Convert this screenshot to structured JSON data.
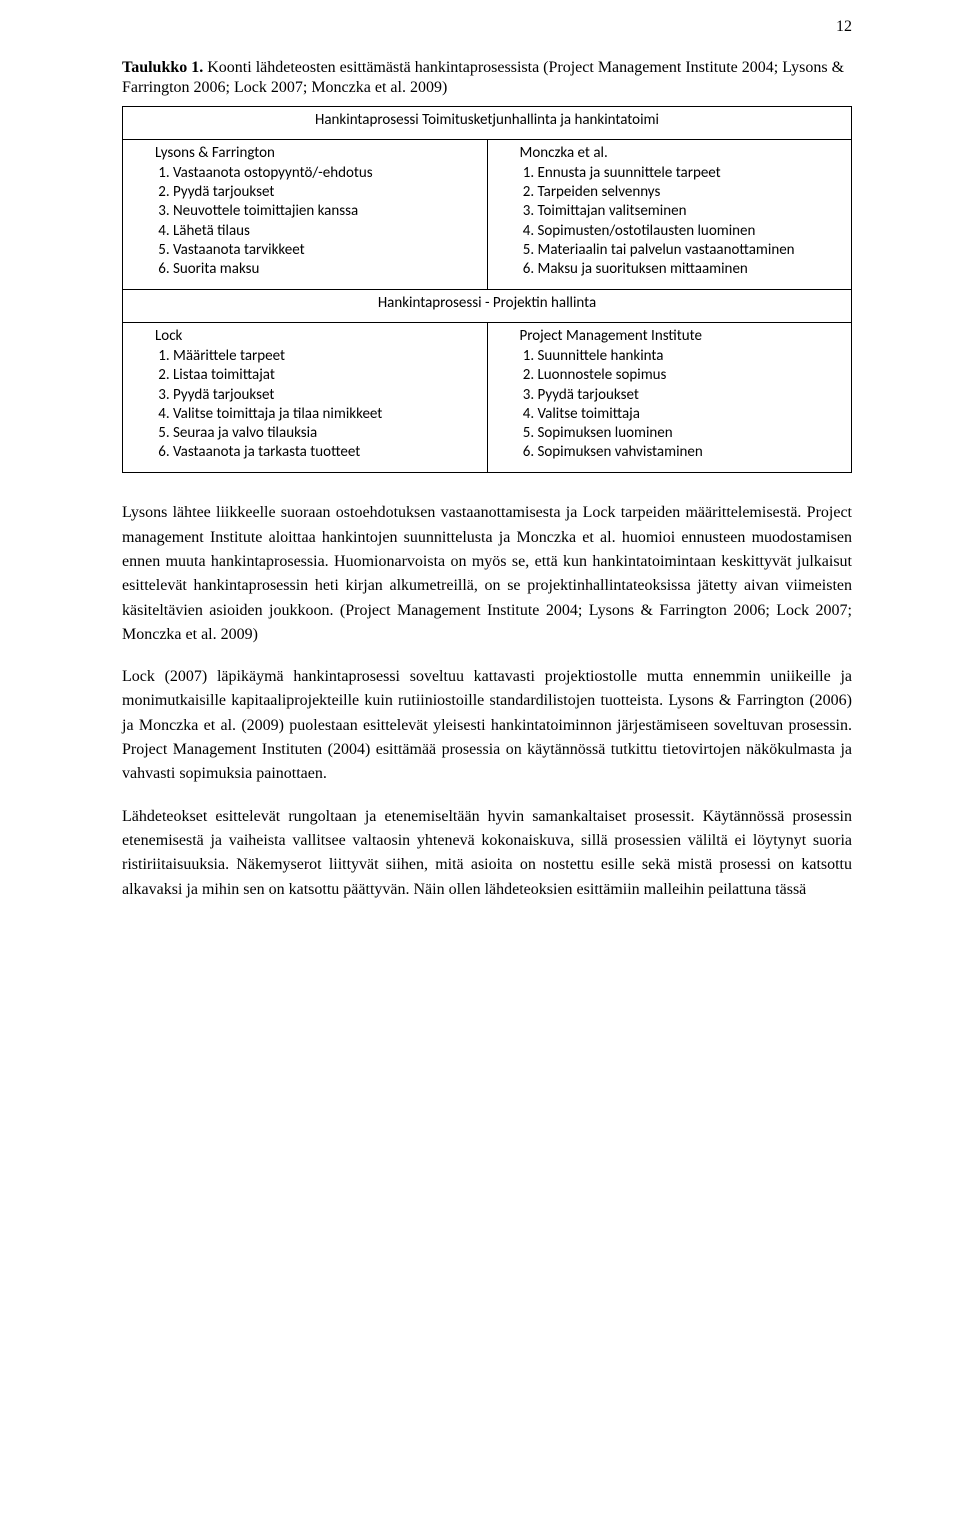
{
  "page_number": "12",
  "caption_bold": "Taulukko 1.",
  "caption_rest": " Koonti lähdeteosten esittämästä hankintaprosessista (Project Management Institute 2004; Lysons & Farrington 2006; Lock 2007; Monczka et al. 2009)",
  "table": {
    "top_header": "Hankintaprosessi Toimitusketjunhallinta ja hankintatoimi",
    "top_left_label": "Lysons & Farrington",
    "top_right_label": "Monczka et al.",
    "top_left_items": [
      "Vastaanota ostopyyntö/-ehdotus",
      "Pyydä tarjoukset",
      "Neuvottele toimittajien kanssa",
      "Lähetä tilaus",
      "Vastaanota tarvikkeet",
      "Suorita maksu"
    ],
    "top_right_items": [
      "Ennusta ja suunnittele tarpeet",
      "Tarpeiden selvennys",
      "Toimittajan valitseminen",
      "Sopimusten/ostotilausten luominen",
      "Materiaalin tai palvelun vastaanottaminen",
      "Maksu ja suorituksen mittaaminen"
    ],
    "bottom_header": "Hankintaprosessi - Projektin hallinta",
    "bottom_left_label": "Lock",
    "bottom_right_label": "Project Management Institute",
    "bottom_left_items": [
      " Määrittele tarpeet",
      "Listaa toimittajat",
      "Pyydä tarjoukset",
      "Valitse toimittaja ja tilaa nimikkeet",
      "Seuraa ja valvo tilauksia",
      "Vastaanota ja tarkasta tuotteet"
    ],
    "bottom_right_items": [
      "Suunnittele hankinta",
      "Luonnostele sopimus",
      "Pyydä tarjoukset",
      "Valitse toimittaja",
      "Sopimuksen luominen",
      "Sopimuksen vahvistaminen"
    ]
  },
  "paragraphs": [
    "Lysons lähtee liikkeelle suoraan ostoehdotuksen vastaanottamisesta ja Lock tarpeiden määrittelemisestä. Project management Institute aloittaa hankintojen suunnittelusta ja Monczka et al. huomioi ennusteen muodostamisen ennen muuta hankintaprosessia. Huomionarvoista on myös se, että kun hankintatoimintaan keskittyvät julkaisut esittelevät hankintaprosessin heti kirjan alkumetreillä, on se projektinhallintateoksissa jätetty aivan viimeisten käsiteltävien asioiden joukkoon. (Project Management Institute 2004; Lysons & Farrington 2006; Lock 2007; Monczka et al. 2009)",
    "Lock (2007) läpikäymä hankintaprosessi soveltuu kattavasti projektiostolle mutta ennemmin uniikeille ja monimutkaisille kapitaaliprojekteille kuin rutiiniostoille standardilistojen tuotteista. Lysons & Farrington (2006) ja Monczka et al. (2009) puolestaan esittelevät yleisesti hankintatoiminnon järjestämiseen soveltuvan prosessin. Project Management Instituten (2004) esittämää prosessia on käytännössä tutkittu tietovirtojen näkökulmasta ja vahvasti sopimuksia painottaen.",
    "Lähdeteokset esittelevät rungoltaan ja etenemiseltään hyvin samankaltaiset prosessit. Käytännössä prosessin etenemisestä ja vaiheista vallitsee valtaosin yhtenevä kokonaiskuva, sillä prosessien väliltä ei löytynyt suoria ristiriitaisuuksia. Näkemyserot liittyvät siihen, mitä asioita on nostettu esille sekä mistä prosessi on katsottu alkavaksi ja mihin sen on katsottu päättyvän. Näin ollen lähdeteoksien esittämiin malleihin peilattuna tässä"
  ]
}
